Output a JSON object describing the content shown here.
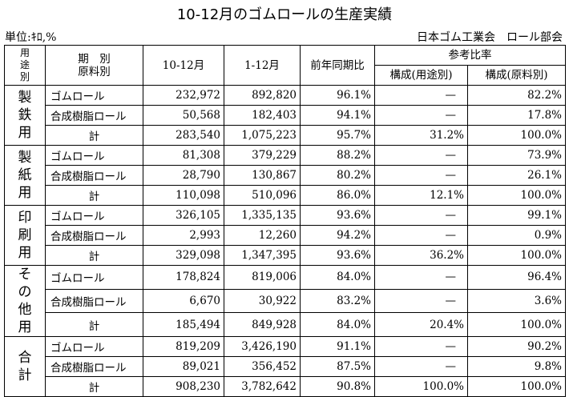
{
  "title": "10-12月のゴムロールの生産実績",
  "unit": "単位:ｷﾛ,%",
  "source": "日本ゴム工業会　ロール部会",
  "header": {
    "use_col": [
      "用",
      "途",
      "別"
    ],
    "kind_col": [
      "期　別",
      "原料別"
    ],
    "q4": "10-12月",
    "ytd": "1-12月",
    "yoy": "前年同期比",
    "ref_group": "参考比率",
    "by_use": "構成(用途別)",
    "by_material": "構成(原料別)"
  },
  "groups": [
    {
      "use": [
        "製",
        "鉄",
        "用"
      ],
      "rows": [
        {
          "kind": "ゴムロール",
          "q4": "232,972",
          "ytd": "892,820",
          "yoy": "96.1%",
          "by_use": "—",
          "by_material": "82.2%"
        },
        {
          "kind": "合成樹脂ロール",
          "q4": "50,568",
          "ytd": "182,403",
          "yoy": "94.1%",
          "by_use": "—",
          "by_material": "17.8%"
        },
        {
          "kind": "計",
          "q4": "283,540",
          "ytd": "1,075,223",
          "yoy": "95.7%",
          "by_use": "31.2%",
          "by_material": "100.0%"
        }
      ]
    },
    {
      "use": [
        "製",
        "紙",
        "用"
      ],
      "rows": [
        {
          "kind": "ゴムロール",
          "q4": "81,308",
          "ytd": "379,229",
          "yoy": "88.2%",
          "by_use": "—",
          "by_material": "73.9%"
        },
        {
          "kind": "合成樹脂ロール",
          "q4": "28,790",
          "ytd": "130,867",
          "yoy": "80.2%",
          "by_use": "—",
          "by_material": "26.1%"
        },
        {
          "kind": "計",
          "q4": "110,098",
          "ytd": "510,096",
          "yoy": "86.0%",
          "by_use": "12.1%",
          "by_material": "100.0%"
        }
      ]
    },
    {
      "use": [
        "印",
        "刷",
        "用"
      ],
      "rows": [
        {
          "kind": "ゴムロール",
          "q4": "326,105",
          "ytd": "1,335,135",
          "yoy": "93.6%",
          "by_use": "—",
          "by_material": "99.1%"
        },
        {
          "kind": "合成樹脂ロール",
          "q4": "2,993",
          "ytd": "12,260",
          "yoy": "94.2%",
          "by_use": "—",
          "by_material": "0.9%"
        },
        {
          "kind": "計",
          "q4": "329,098",
          "ytd": "1,347,395",
          "yoy": "93.6%",
          "by_use": "36.2%",
          "by_material": "100.0%"
        }
      ]
    },
    {
      "use": [
        "そ",
        "の",
        "他",
        "用"
      ],
      "rows": [
        {
          "kind": "ゴムロール",
          "q4": "178,824",
          "ytd": "819,006",
          "yoy": "84.0%",
          "by_use": "—",
          "by_material": "96.4%"
        },
        {
          "kind": "合成樹脂ロール",
          "q4": "6,670",
          "ytd": "30,922",
          "yoy": "83.2%",
          "by_use": "—",
          "by_material": "3.6%"
        },
        {
          "kind": "計",
          "q4": "185,494",
          "ytd": "849,928",
          "yoy": "84.0%",
          "by_use": "20.4%",
          "by_material": "100.0%"
        }
      ]
    },
    {
      "use": [
        "合",
        "計"
      ],
      "rows": [
        {
          "kind": "ゴムロール",
          "q4": "819,209",
          "ytd": "3,426,190",
          "yoy": "91.1%",
          "by_use": "—",
          "by_material": "90.2%"
        },
        {
          "kind": "合成樹脂ロール",
          "q4": "89,021",
          "ytd": "356,452",
          "yoy": "87.5%",
          "by_use": "—",
          "by_material": "9.8%"
        },
        {
          "kind": "計",
          "q4": "908,230",
          "ytd": "3,782,642",
          "yoy": "90.8%",
          "by_use": "100.0%",
          "by_material": "100.0%"
        }
      ]
    }
  ]
}
